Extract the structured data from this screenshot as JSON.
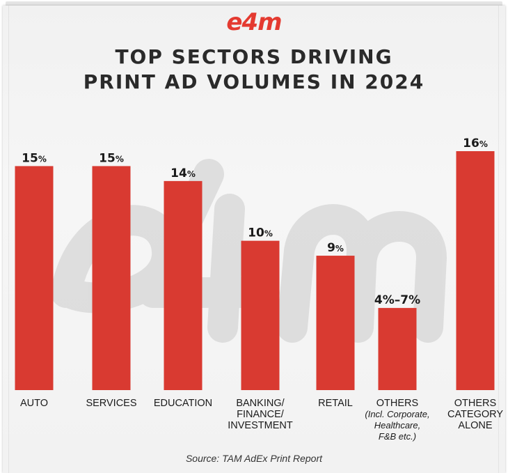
{
  "brand": {
    "logo_text": "e4m",
    "accent": "#d93a31",
    "logo_color": "#e43a30"
  },
  "title": {
    "line1": "TOP SECTORS DRIVING",
    "line2": "PRINT AD VOLUMES IN 2024"
  },
  "source": "Source: TAM AdEx Print Report",
  "chart_data": {
    "type": "bar",
    "categories": [
      [
        "AUTO"
      ],
      [
        "SERVICES"
      ],
      [
        "EDUCATION"
      ],
      [
        "BANKING/",
        "FINANCE/",
        "INVESTMENT"
      ],
      [
        "RETAIL"
      ],
      [
        "OTHERS"
      ],
      [
        "OTHERS",
        "CATEGORY",
        "ALONE"
      ]
    ],
    "sublabels": [
      [],
      [],
      [],
      [],
      [],
      [
        "(Incl. Corporate,",
        "Healthcare,",
        "F&B etc.)"
      ],
      []
    ],
    "values": [
      15,
      15,
      14,
      10,
      9,
      5.5,
      16
    ],
    "range_low": [
      null,
      null,
      null,
      null,
      null,
      4,
      null
    ],
    "range_high": [
      null,
      null,
      null,
      null,
      null,
      7,
      null
    ],
    "value_labels": [
      [
        "15",
        "%"
      ],
      [
        "15",
        "%"
      ],
      [
        "14",
        "%"
      ],
      [
        "10",
        "%"
      ],
      [
        "9",
        "%"
      ],
      [
        "4%–7%",
        ""
      ],
      [
        "16",
        "%"
      ]
    ],
    "ylim": [
      0,
      16.5
    ],
    "unit": "%",
    "bar_color": "#d93a31",
    "grid": false,
    "legend": "none"
  }
}
